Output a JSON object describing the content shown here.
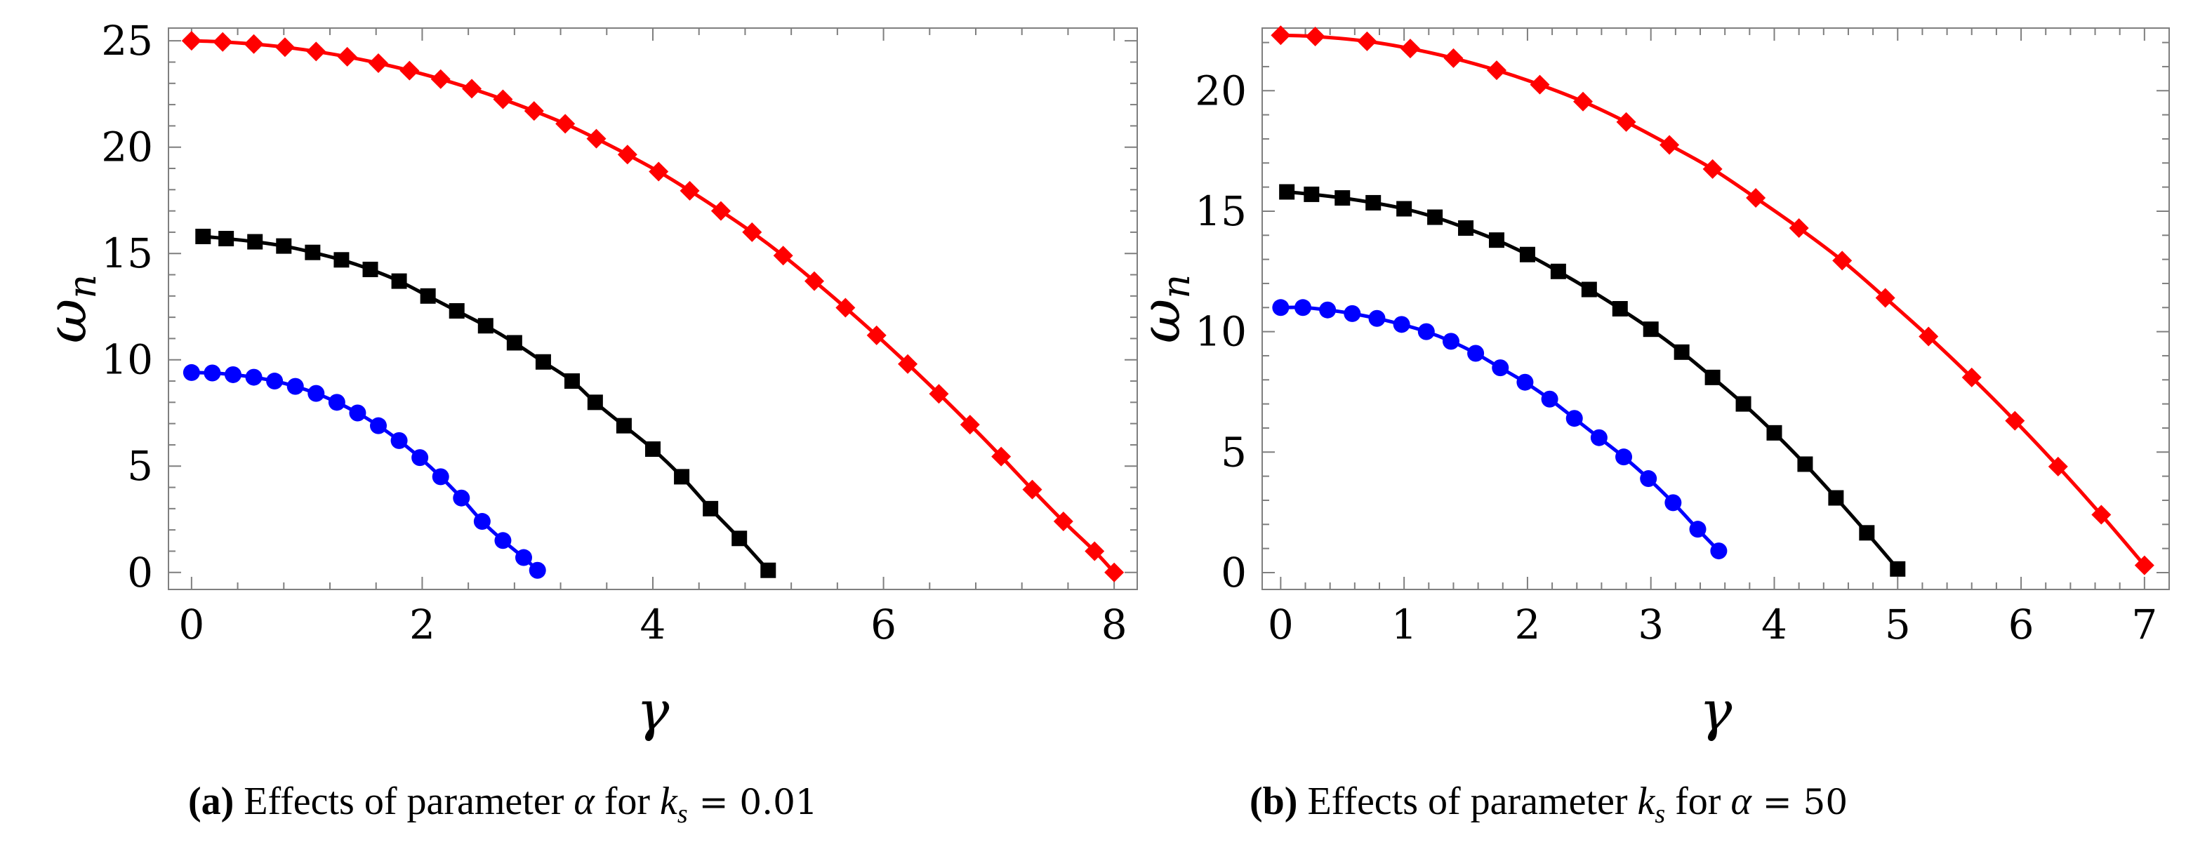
{
  "chart_data": [
    {
      "type": "line",
      "panel_tag": "(a)",
      "caption": {
        "pre": "Effects of parameter ",
        "var": "α",
        "mid": " for ",
        "cond_var": "k",
        "cond_sub": "s",
        "eq": " = ",
        "cond_val": "0.01"
      },
      "xlabel": "γ",
      "ylabel_main": "ω",
      "ylabel_sub": "n",
      "xlim": [
        -0.2,
        8.2
      ],
      "ylim": [
        -0.8,
        25.6
      ],
      "xticks": [
        0,
        2,
        4,
        6,
        8
      ],
      "yticks": [
        0,
        5,
        10,
        15,
        20,
        25
      ],
      "series": [
        {
          "name": "blue-circles",
          "color": "#0000ff",
          "marker": "circle",
          "x": [
            0.0,
            0.18,
            0.36,
            0.54,
            0.72,
            0.9,
            1.08,
            1.26,
            1.44,
            1.62,
            1.8,
            1.98,
            2.16,
            2.34,
            2.52,
            2.7,
            2.88,
            3.0
          ],
          "y": [
            9.4,
            9.38,
            9.3,
            9.18,
            9.0,
            8.75,
            8.42,
            8.0,
            7.5,
            6.9,
            6.2,
            5.4,
            4.5,
            3.5,
            2.4,
            1.5,
            0.7,
            0.1
          ]
        },
        {
          "name": "black-squares",
          "color": "#000000",
          "marker": "square",
          "x": [
            0.1,
            0.3,
            0.55,
            0.8,
            1.05,
            1.3,
            1.55,
            1.8,
            2.05,
            2.3,
            2.55,
            2.8,
            3.05,
            3.3,
            3.5,
            3.75,
            4.0,
            4.25,
            4.5,
            4.75,
            5.0
          ],
          "y": [
            15.8,
            15.7,
            15.55,
            15.35,
            15.05,
            14.7,
            14.25,
            13.7,
            13.0,
            12.3,
            11.6,
            10.8,
            9.9,
            9.0,
            8.0,
            6.9,
            5.8,
            4.5,
            3.0,
            1.6,
            0.1
          ]
        },
        {
          "name": "red-diamonds",
          "color": "#ff0000",
          "marker": "diamond",
          "x": [
            0.0,
            0.27,
            0.54,
            0.81,
            1.08,
            1.35,
            1.62,
            1.89,
            2.16,
            2.43,
            2.7,
            2.97,
            3.24,
            3.51,
            3.78,
            4.05,
            4.32,
            4.59,
            4.86,
            5.13,
            5.4,
            5.67,
            5.94,
            6.21,
            6.48,
            6.75,
            7.02,
            7.29,
            7.56,
            7.83,
            8.0
          ],
          "y": [
            25.0,
            24.95,
            24.85,
            24.7,
            24.5,
            24.25,
            23.95,
            23.6,
            23.2,
            22.75,
            22.25,
            21.7,
            21.1,
            20.4,
            19.65,
            18.85,
            17.95,
            17.0,
            16.0,
            14.9,
            13.7,
            12.45,
            11.15,
            9.8,
            8.4,
            6.95,
            5.45,
            3.9,
            2.4,
            1.0,
            0.0
          ]
        }
      ]
    },
    {
      "type": "line",
      "panel_tag": "(b)",
      "caption": {
        "pre": "Effects of parameter ",
        "var": "k",
        "var_sub": "s",
        "mid": " for ",
        "cond_var": "α",
        "eq": " = ",
        "cond_val": "50"
      },
      "xlabel": "γ",
      "ylabel_main": "ω",
      "ylabel_sub": "n",
      "xlim": [
        -0.15,
        7.2
      ],
      "ylim": [
        -0.7,
        22.6
      ],
      "xticks": [
        0,
        1,
        2,
        3,
        4,
        5,
        6,
        7
      ],
      "yticks": [
        0,
        5,
        10,
        15,
        20
      ],
      "series": [
        {
          "name": "blue-circles",
          "color": "#0000ff",
          "marker": "circle",
          "x": [
            0.0,
            0.18,
            0.38,
            0.58,
            0.78,
            0.98,
            1.18,
            1.38,
            1.58,
            1.78,
            1.98,
            2.18,
            2.38,
            2.58,
            2.78,
            2.98,
            3.18,
            3.38,
            3.55
          ],
          "y": [
            11.0,
            11.0,
            10.9,
            10.75,
            10.55,
            10.3,
            10.0,
            9.6,
            9.1,
            8.5,
            7.9,
            7.2,
            6.4,
            5.6,
            4.8,
            3.9,
            2.9,
            1.8,
            0.9
          ]
        },
        {
          "name": "black-squares",
          "color": "#000000",
          "marker": "square",
          "x": [
            0.05,
            0.25,
            0.5,
            0.75,
            1.0,
            1.25,
            1.5,
            1.75,
            2.0,
            2.25,
            2.5,
            2.75,
            3.0,
            3.25,
            3.5,
            3.75,
            4.0,
            4.25,
            4.5,
            4.75,
            5.0
          ],
          "y": [
            15.8,
            15.7,
            15.55,
            15.35,
            15.1,
            14.75,
            14.3,
            13.8,
            13.2,
            12.5,
            11.75,
            10.95,
            10.1,
            9.15,
            8.1,
            7.0,
            5.8,
            4.5,
            3.1,
            1.65,
            0.15
          ]
        },
        {
          "name": "red-diamonds",
          "color": "#ff0000",
          "marker": "diamond",
          "x": [
            0.0,
            0.28,
            0.7,
            1.05,
            1.4,
            1.75,
            2.1,
            2.45,
            2.8,
            3.15,
            3.5,
            3.85,
            4.2,
            4.55,
            4.9,
            5.25,
            5.6,
            5.95,
            6.3,
            6.65,
            7.0
          ],
          "y": [
            22.3,
            22.25,
            22.05,
            21.75,
            21.35,
            20.85,
            20.25,
            19.55,
            18.7,
            17.75,
            16.75,
            15.55,
            14.3,
            12.95,
            11.4,
            9.8,
            8.1,
            6.3,
            4.4,
            2.4,
            0.3
          ]
        }
      ]
    }
  ]
}
